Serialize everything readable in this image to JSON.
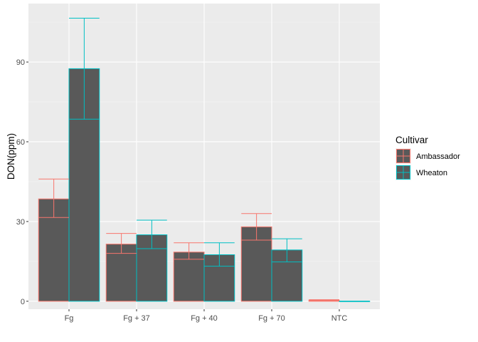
{
  "chart_data": {
    "type": "bar",
    "title": "",
    "xlabel": "",
    "ylabel": "DON(ppm)",
    "categories": [
      "Fg",
      "Fg + 37",
      "Fg + 40",
      "Fg + 70",
      "NTC"
    ],
    "ylim": [
      -3,
      112
    ],
    "yticks": [
      0,
      30,
      60,
      90
    ],
    "grid": true,
    "legend": {
      "title": "Cultivar",
      "position": "right"
    },
    "bar_fill": "#595959",
    "panel_background": "#ebebeb",
    "series": [
      {
        "name": "Ambassador",
        "color": "#F8766D",
        "values": [
          38.5,
          21.5,
          18.5,
          28.0,
          0.4
        ],
        "error_low": [
          31.5,
          18.0,
          15.8,
          23.0,
          0.2
        ],
        "error_high": [
          46.0,
          25.5,
          22.0,
          33.0,
          0.6
        ]
      },
      {
        "name": "Wheaton",
        "color": "#00BFC4",
        "values": [
          87.5,
          25.0,
          17.5,
          19.3,
          0.0
        ],
        "error_low": [
          68.5,
          19.8,
          13.2,
          14.8,
          0.0
        ],
        "error_high": [
          106.5,
          30.5,
          22.0,
          23.5,
          0.0
        ]
      }
    ]
  }
}
